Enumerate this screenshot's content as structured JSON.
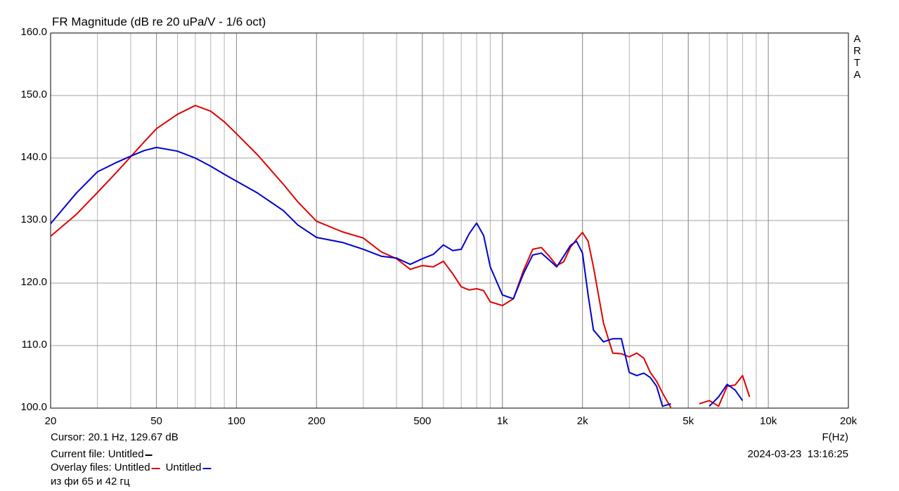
{
  "chart_data": {
    "type": "line",
    "title": "FR Magnitude (dB re 20 uPa/V - 1/6 oct)",
    "watermark": "ARTA",
    "xlabel": "F(Hz)",
    "xscale": "log",
    "grid": true,
    "xlim": [
      20,
      20000
    ],
    "ylim": [
      100,
      160
    ],
    "xticks": [
      20,
      50,
      100,
      200,
      500,
      {
        "value": 1000,
        "label": "1k"
      },
      {
        "value": 2000,
        "label": "2k"
      },
      {
        "value": 5000,
        "label": "5k"
      },
      {
        "value": 10000,
        "label": "10k"
      },
      {
        "value": 20000,
        "label": "20k"
      }
    ],
    "yticks": [
      {
        "value": 100,
        "label": "100.0"
      },
      {
        "value": 110,
        "label": "110.0"
      },
      {
        "value": 120,
        "label": "120.0"
      },
      {
        "value": 130,
        "label": "130.0"
      },
      {
        "value": 140,
        "label": "140.0"
      },
      {
        "value": 150,
        "label": "150.0"
      },
      {
        "value": 160,
        "label": "160.0"
      }
    ],
    "x": [
      20,
      25,
      30,
      35,
      40,
      45,
      50,
      60,
      70,
      80,
      90,
      100,
      120,
      150,
      170,
      200,
      250,
      300,
      350,
      400,
      450,
      500,
      550,
      600,
      650,
      700,
      750,
      800,
      850,
      900,
      1000,
      1100,
      1200,
      1300,
      1400,
      1500,
      1600,
      1700,
      1800,
      1900,
      2000,
      2100,
      2200,
      2400,
      2600,
      2800,
      3000,
      3200,
      3400,
      3600,
      3800,
      4000,
      4300,
      4600,
      5000,
      5500,
      6000,
      6500,
      7000,
      7500,
      8000,
      8500,
      9000
    ],
    "series": [
      {
        "name": "Untitled",
        "color": "#e00000",
        "values": [
          127.5,
          131.0,
          134.5,
          137.5,
          140.2,
          142.6,
          144.7,
          147.0,
          148.4,
          147.5,
          145.8,
          143.9,
          140.5,
          135.8,
          133.0,
          129.9,
          128.2,
          127.2,
          125.0,
          123.9,
          122.2,
          122.8,
          122.6,
          123.5,
          121.5,
          119.4,
          118.9,
          119.1,
          118.8,
          117.0,
          116.4,
          117.5,
          122.0,
          125.4,
          125.7,
          124.3,
          122.8,
          123.4,
          125.7,
          127.0,
          128.1,
          126.7,
          122.6,
          113.6,
          108.8,
          108.7,
          108.2,
          108.8,
          108.0,
          105.7,
          104.3,
          102.4,
          100.1,
          null,
          null,
          100.7,
          101.2,
          100.3,
          103.5,
          103.7,
          105.2,
          101.8,
          null
        ]
      },
      {
        "name": "Untitled",
        "color": "#0000d0",
        "values": [
          129.5,
          134.4,
          137.8,
          139.2,
          140.3,
          141.2,
          141.7,
          141.1,
          140.0,
          138.7,
          137.4,
          136.3,
          134.4,
          131.6,
          129.3,
          127.3,
          126.5,
          125.4,
          124.3,
          124.0,
          123.0,
          123.9,
          124.6,
          126.1,
          125.2,
          125.4,
          127.9,
          129.6,
          127.6,
          122.6,
          118.1,
          117.5,
          121.5,
          124.5,
          124.8,
          123.7,
          122.6,
          124.3,
          126.0,
          126.7,
          124.8,
          118.1,
          112.5,
          110.6,
          111.1,
          111.1,
          105.7,
          105.2,
          105.6,
          104.9,
          103.5,
          100.3,
          100.7,
          null,
          null,
          null,
          100.3,
          101.8,
          103.8,
          102.9,
          101.2,
          null,
          null
        ]
      }
    ],
    "cursor": "Cursor: 20.1 Hz, 129.67 dB",
    "current_file": "Current file: Untitled",
    "current_file_color": "#000000",
    "overlay_label": "Overlay files:",
    "note": "из фи 65 и 42 гц",
    "timestamp": "2024-03-23  13:16:25"
  }
}
